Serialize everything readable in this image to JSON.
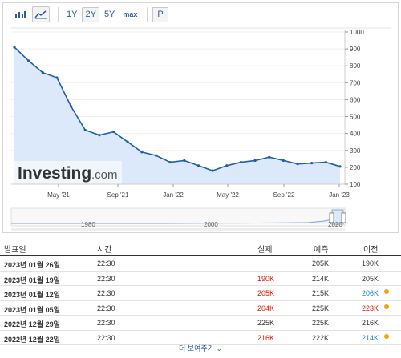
{
  "toolbar": {
    "icons": [
      "bar-chart-icon",
      "area-chart-icon"
    ],
    "ranges": [
      "1Y",
      "2Y",
      "5Y",
      "max"
    ],
    "selected_range": "2Y",
    "p_label": "P"
  },
  "chart": {
    "watermark": "Investing",
    "watermark_suffix": ".com",
    "y_ticks": [
      "1000",
      "900",
      "800",
      "700",
      "600",
      "500",
      "400",
      "300",
      "200",
      "100"
    ],
    "x_ticks": [
      "May '21",
      "Sep '21",
      "Jan '22",
      "May '22",
      "Sep '22",
      "Jan '23"
    ],
    "navigator_labels": [
      "1980",
      "2000",
      "2020"
    ],
    "accent": "#1f5fa6",
    "fill": "#dbe9fb"
  },
  "chart_data": {
    "type": "area",
    "ylim": [
      100,
      1000
    ],
    "x": [
      "Feb '21",
      "Mar '21",
      "Apr '21",
      "May '21",
      "Jun '21",
      "Jul '21",
      "Aug '21",
      "Sep '21",
      "Oct '21",
      "Nov '21",
      "Dec '21",
      "Jan '22",
      "Feb '22",
      "Mar '22",
      "Apr '22",
      "May '22",
      "Jun '22",
      "Jul '22",
      "Aug '22",
      "Sep '22",
      "Oct '22",
      "Nov '22",
      "Dec '22",
      "Jan '23"
    ],
    "values": [
      910,
      830,
      760,
      730,
      560,
      420,
      390,
      410,
      350,
      290,
      270,
      230,
      240,
      210,
      180,
      210,
      230,
      240,
      260,
      240,
      220,
      225,
      230,
      205
    ]
  },
  "table": {
    "headers": {
      "date": "발표일",
      "time": "시간",
      "actual": "실제",
      "forecast": "예측",
      "previous": "이전"
    },
    "rows": [
      {
        "date": "2023년 01월 26일",
        "time": "22:30",
        "actual": "",
        "forecast": "205K",
        "previous": "190K",
        "actual_color": "",
        "previous_color": "",
        "dot": false
      },
      {
        "date": "2023년 01월 19일",
        "time": "22:30",
        "actual": "190K",
        "forecast": "214K",
        "previous": "205K",
        "actual_color": "red",
        "previous_color": "",
        "dot": false
      },
      {
        "date": "2023년 01월 12일",
        "time": "22:30",
        "actual": "205K",
        "forecast": "215K",
        "previous": "206K",
        "actual_color": "red",
        "previous_color": "blue",
        "dot": true
      },
      {
        "date": "2023년 01월 05일",
        "time": "22:30",
        "actual": "204K",
        "forecast": "225K",
        "previous": "223K",
        "actual_color": "red",
        "previous_color": "red",
        "dot": true
      },
      {
        "date": "2022년 12월 29일",
        "time": "22:30",
        "actual": "225K",
        "forecast": "225K",
        "previous": "216K",
        "actual_color": "",
        "previous_color": "",
        "dot": false
      },
      {
        "date": "2022년 12월 22일",
        "time": "22:30",
        "actual": "216K",
        "forecast": "222K",
        "previous": "214K",
        "actual_color": "red",
        "previous_color": "blue",
        "dot": true
      }
    ],
    "more_label": "더 보여주기"
  }
}
